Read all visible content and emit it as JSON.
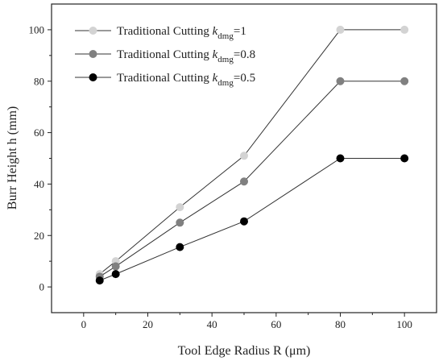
{
  "chart_data": {
    "type": "line",
    "xlabel": "Tool Edge Radius R (μm)",
    "ylabel": "Burr Height h (mm)",
    "xlim": [
      -10,
      110
    ],
    "ylim": [
      -10,
      110
    ],
    "xticks": [
      0,
      20,
      40,
      60,
      80,
      100
    ],
    "yticks": [
      0,
      20,
      40,
      60,
      80,
      100
    ],
    "grid": false,
    "legend_position": "top-left",
    "x": [
      5,
      10,
      30,
      50,
      80,
      100
    ],
    "series": [
      {
        "name": "Traditional Cutting k_dmg=1",
        "legend_text": "Traditional Cutting",
        "legend_k": "k",
        "legend_sub": "dmg",
        "legend_val": "=1",
        "color": "#d3d3d3",
        "values": [
          5,
          10,
          31,
          51,
          100,
          100
        ]
      },
      {
        "name": "Traditional Cutting k_dmg=0.8",
        "legend_text": "Traditional Cutting",
        "legend_k": "k",
        "legend_sub": "dmg",
        "legend_val": "=0.8",
        "color": "#808080",
        "values": [
          4,
          8,
          25,
          41,
          80,
          80
        ]
      },
      {
        "name": "Traditional Cutting k_dmg=0.5",
        "legend_text": "Traditional Cutting",
        "legend_k": "k",
        "legend_sub": "dmg",
        "legend_val": "=0.5",
        "color": "#000000",
        "values": [
          2.5,
          5,
          15.5,
          25.5,
          50,
          50
        ]
      }
    ]
  }
}
